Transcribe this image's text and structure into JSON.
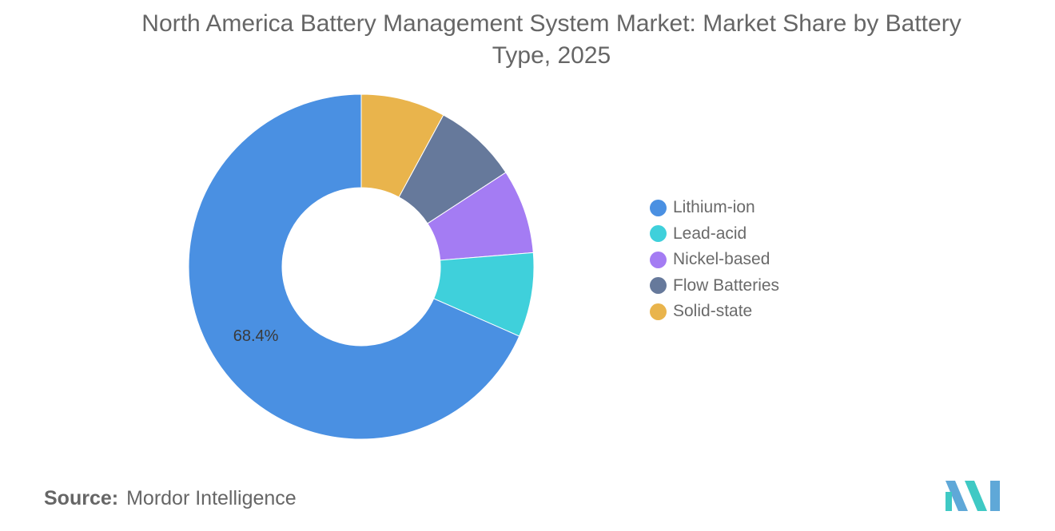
{
  "chart_data": {
    "type": "pie",
    "title": "North America Battery Management System Market: Market Share by Battery Type, 2025",
    "categories": [
      "Lithium-ion",
      "Lead-acid",
      "Nickel-based",
      "Flow Batteries",
      "Solid-state"
    ],
    "values": [
      68.4,
      7.9,
      7.9,
      7.9,
      7.9
    ],
    "colors": [
      "#4a90e2",
      "#3fd0db",
      "#a47cf3",
      "#66799b",
      "#e9b44c"
    ],
    "data_labels": [
      "68.4%",
      "",
      "",
      "",
      ""
    ],
    "legend_position": "right",
    "donut": true
  },
  "source": {
    "label": "Source:",
    "value": "Mordor Intelligence"
  },
  "logo": {
    "name": "mordor-intelligence-logo",
    "colors": [
      "#5fa8d8",
      "#3fc9c4"
    ]
  }
}
